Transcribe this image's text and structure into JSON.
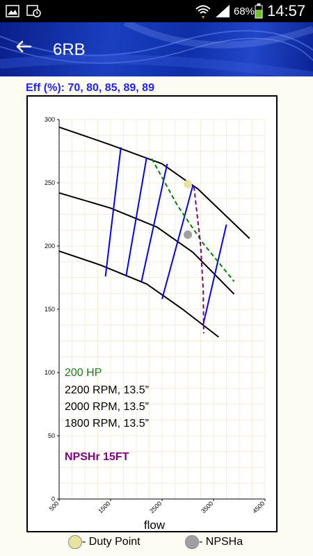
{
  "status_bar": {
    "time": "14:57",
    "battery": "68%",
    "icons": [
      "image-icon",
      "calendar-clock-icon",
      "wifi-icon",
      "signal-icon",
      "battery-icon"
    ]
  },
  "header": {
    "title": "6RB",
    "back_icon": "arrow-left-icon"
  },
  "efficiency_label": "Eff (%): 70, 80, 85, 89, 89",
  "chart_data": {
    "type": "line",
    "xlabel": "flow",
    "ylabel": "",
    "xlim": [
      500,
      4500
    ],
    "ylim": [
      0,
      300
    ],
    "x_ticks": [
      500,
      1500,
      2500,
      3500,
      4500
    ],
    "y_ticks": [
      0,
      50,
      100,
      150,
      200,
      250,
      300
    ],
    "grid": true,
    "series": [
      {
        "color": "#000000",
        "points": [
          [
            500,
            294
          ],
          [
            1500,
            280
          ],
          [
            2500,
            265
          ],
          [
            3200,
            245
          ],
          [
            4200,
            206
          ]
        ]
      },
      {
        "color": "#000000",
        "points": [
          [
            500,
            242
          ],
          [
            1500,
            230
          ],
          [
            2400,
            215
          ],
          [
            3100,
            195
          ],
          [
            3900,
            162
          ]
        ]
      },
      {
        "color": "#000000",
        "points": [
          [
            500,
            196
          ],
          [
            1300,
            185
          ],
          [
            2200,
            170
          ],
          [
            2900,
            150
          ],
          [
            3600,
            128
          ]
        ]
      },
      {
        "color": "#0000ff",
        "points": [
          [
            1400,
            176
          ],
          [
            1700,
            278
          ]
        ]
      },
      {
        "color": "#0000ff",
        "points": [
          [
            1800,
            176
          ],
          [
            2200,
            270
          ]
        ]
      },
      {
        "color": "#0000ff",
        "points": [
          [
            2100,
            172
          ],
          [
            2600,
            265
          ]
        ]
      },
      {
        "color": "#0000ff",
        "points": [
          [
            2500,
            158
          ],
          [
            3100,
            248
          ]
        ]
      },
      {
        "color": "#0000ff",
        "points": [
          [
            3300,
            138
          ],
          [
            3750,
            217
          ]
        ]
      },
      {
        "color": "#008000",
        "dashed": true,
        "points": [
          [
            2300,
            269
          ],
          [
            2800,
            232
          ],
          [
            3300,
            202
          ],
          [
            3900,
            172
          ]
        ]
      },
      {
        "color": "#800080",
        "dashed": true,
        "points": [
          [
            3120,
            247
          ],
          [
            3250,
            200
          ],
          [
            3300,
            165
          ],
          [
            3310,
            131
          ]
        ]
      }
    ],
    "points": [
      {
        "name": "Duty Point",
        "x": 3000,
        "y": 249,
        "color": "#e8e3a0"
      },
      {
        "name": "NPSHa",
        "x": 3000,
        "y": 209,
        "color": "#a0a0a0"
      }
    ],
    "annotations": [
      {
        "text": "200 HP",
        "color": "#1a7a1a",
        "bold": false
      },
      {
        "text": "2200 RPM, 13.5”",
        "color": "#000000",
        "bold": false
      },
      {
        "text": "2000 RPM, 13.5”",
        "color": "#000000",
        "bold": false
      },
      {
        "text": "1800 RPM, 13.5”",
        "color": "#000000",
        "bold": false
      },
      {
        "text": "NPSHr 15FT",
        "color": "#800080",
        "bold": true
      }
    ]
  },
  "legend": [
    {
      "label": "- Duty Point",
      "color": "#e8e3a0"
    },
    {
      "label": "- NPSHa",
      "color": "#a0a0a0"
    }
  ]
}
